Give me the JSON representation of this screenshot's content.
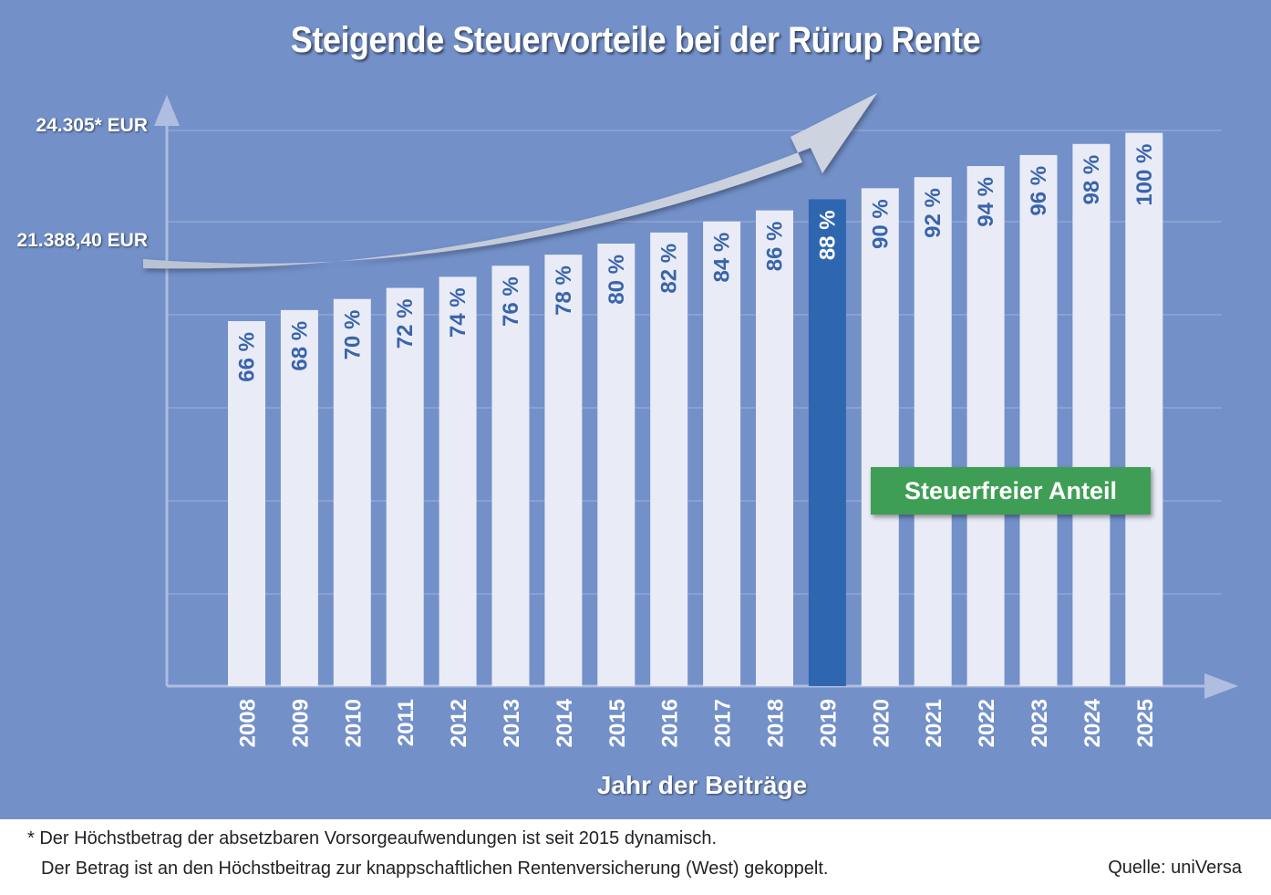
{
  "title": "Steigende Steuervorteile bei der Rürup Rente",
  "y_labels": {
    "top": "24.305* EUR",
    "bottom": "21.388,40 EUR"
  },
  "legend": {
    "label": "Steuerfreier Anteil",
    "color": "#3f9e55"
  },
  "footnote": {
    "line1": "* Der Höchstbetrag der absetzbaren Vorsorgeaufwendungen ist seit 2015 dynamisch.",
    "line2": "Der Betrag ist an den Höchstbeitrag zur knappschaftlichen Rentenversicherung (West) gekoppelt."
  },
  "source": "Quelle: uniVersa",
  "colors": {
    "background": "#7390c9",
    "bar": "#e9ecf6",
    "bar_highlight": "#2f66b0",
    "label_text": "#3a64ab",
    "arrow": "#c5ccd9"
  },
  "chart_data": {
    "type": "bar",
    "title": "Steigende Steuervorteile bei der Rürup Rente",
    "xlabel": "Jahr der Beiträge",
    "ylabel": "",
    "categories": [
      "2008",
      "2009",
      "2010",
      "2011",
      "2012",
      "2013",
      "2014",
      "2015",
      "2016",
      "2017",
      "2018",
      "2019",
      "2020",
      "2021",
      "2022",
      "2023",
      "2024",
      "2025"
    ],
    "values": [
      66,
      68,
      70,
      72,
      74,
      76,
      78,
      80,
      82,
      84,
      86,
      88,
      90,
      92,
      94,
      96,
      98,
      100
    ],
    "value_labels": [
      "66 %",
      "68 %",
      "70 %",
      "72 %",
      "74 %",
      "76 %",
      "78 %",
      "80 %",
      "82 %",
      "84 %",
      "86 %",
      "88 %",
      "90 %",
      "92 %",
      "94 %",
      "96 %",
      "98 %",
      "100 %"
    ],
    "highlight_category": "2019",
    "unit": "%",
    "grid": true,
    "legend_position": "inside-lower-right"
  }
}
